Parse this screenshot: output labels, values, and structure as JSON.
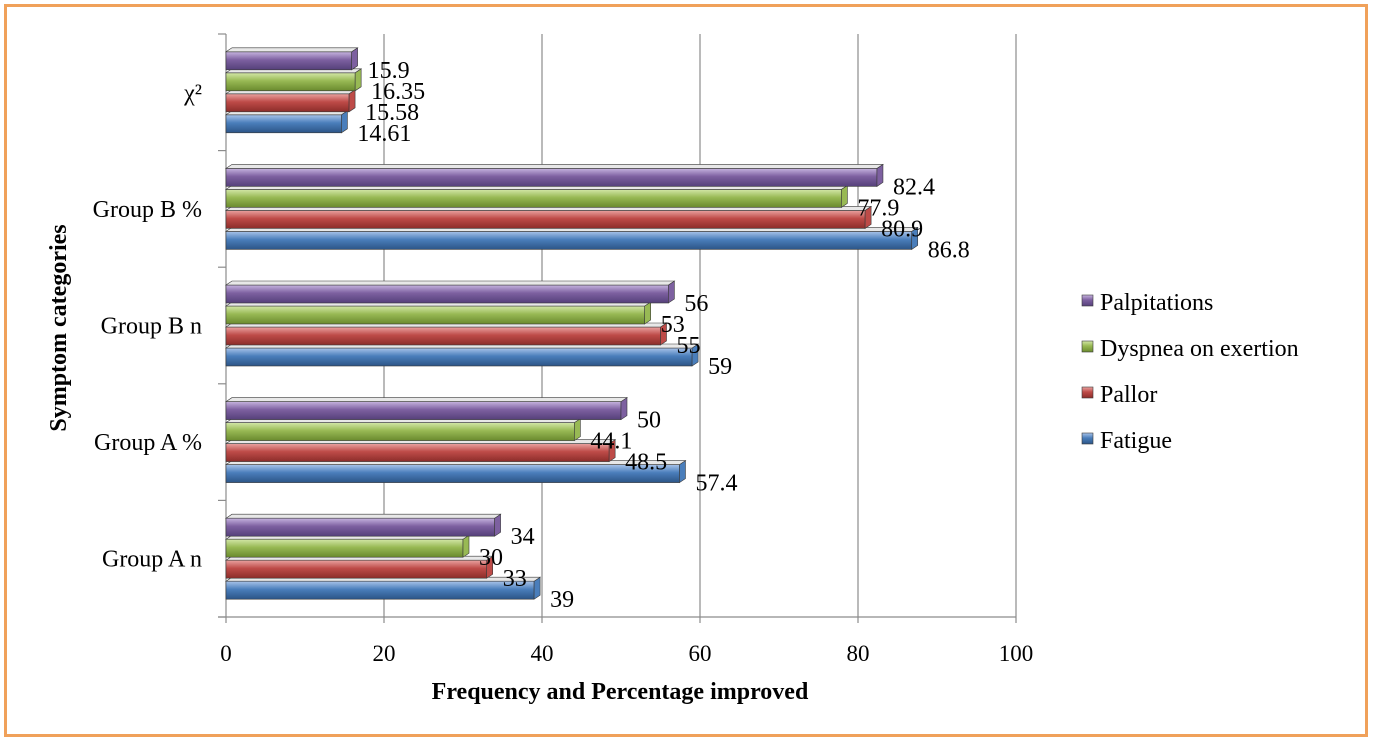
{
  "chart_data": {
    "type": "bar",
    "orientation": "horizontal",
    "categories": [
      "Group A n",
      "Group A %",
      "Group B n",
      "Group B %",
      "χ²"
    ],
    "series": [
      {
        "name": "Fatigue",
        "color": "#4a7ebb",
        "values": [
          39,
          57.4,
          59,
          86.8,
          14.61
        ]
      },
      {
        "name": "Pallor",
        "color": "#be4b48",
        "values": [
          33,
          48.5,
          55,
          80.9,
          15.58
        ]
      },
      {
        "name": "Dyspnea on exertion",
        "color": "#98b954",
        "values": [
          30,
          44.1,
          53,
          77.9,
          16.35
        ]
      },
      {
        "name": "Palpitations",
        "color": "#7d60a0",
        "values": [
          34,
          50,
          56,
          82.4,
          15.9
        ]
      }
    ],
    "value_labels": [
      [
        "39",
        "57.4",
        "59",
        "86.8",
        "14.61"
      ],
      [
        "33",
        "48.5",
        "55",
        "80.9",
        "15.58"
      ],
      [
        "30",
        "44.1",
        "53",
        "77.9",
        "16.35"
      ],
      [
        "34",
        "50",
        "56",
        "82.4",
        "15.9"
      ]
    ],
    "xlabel": "Frequency and Percentage improved",
    "ylabel": "Symptom categories",
    "xlim": [
      0,
      100
    ],
    "xticks": [
      "0",
      "20",
      "40",
      "60",
      "80",
      "100"
    ],
    "grid": true,
    "legend_position": "right",
    "legend_order": [
      "Palpitations",
      "Dyspnea on exertion",
      "Pallor",
      "Fatigue"
    ],
    "frame_color": "#f0a15a"
  }
}
